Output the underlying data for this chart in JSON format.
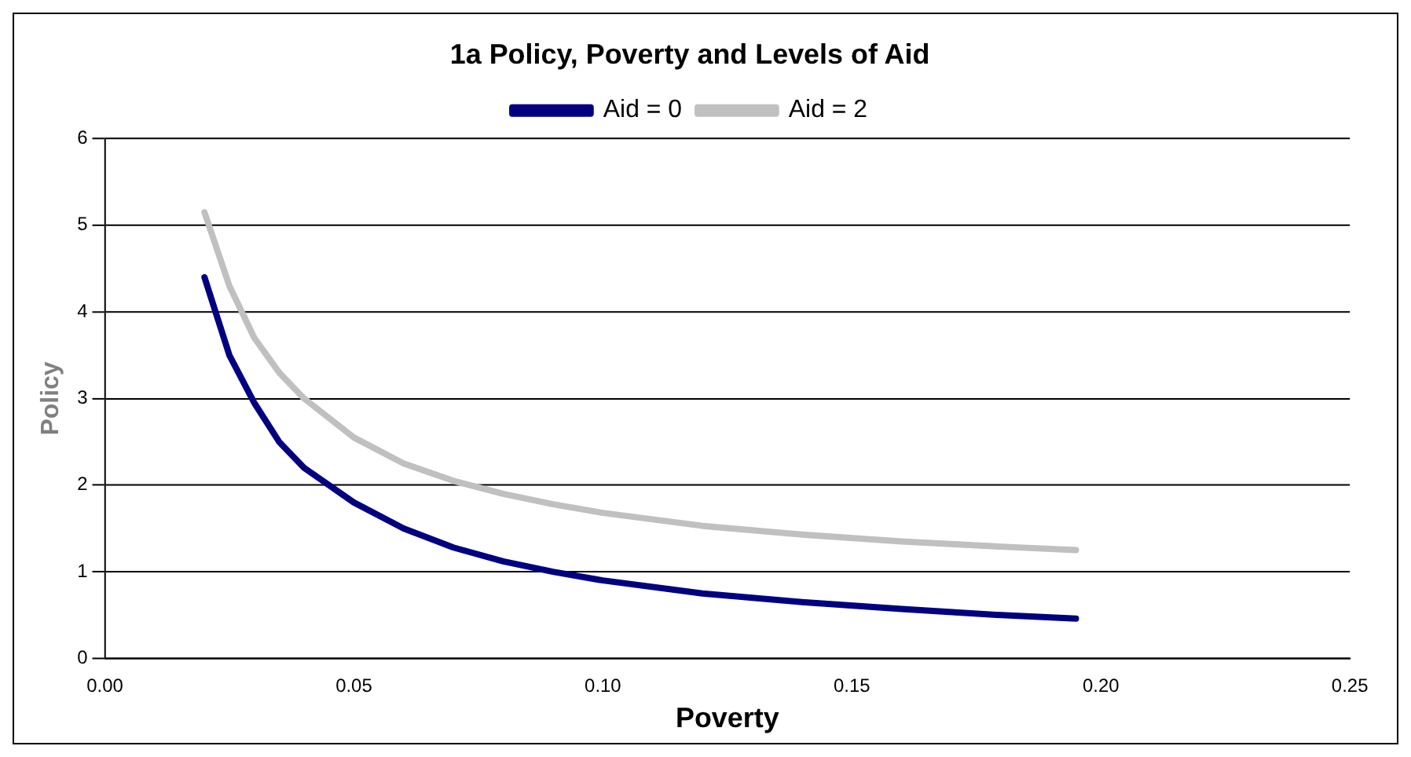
{
  "chart_data": {
    "type": "line",
    "title": "1a Policy, Poverty and Levels of Aid",
    "xlabel": "Poverty",
    "ylabel": "Policy",
    "x": [
      0.02,
      0.025,
      0.03,
      0.035,
      0.04,
      0.05,
      0.06,
      0.07,
      0.08,
      0.09,
      0.1,
      0.12,
      0.14,
      0.16,
      0.18,
      0.195
    ],
    "series": [
      {
        "name": "Aid = 0",
        "color": "#000080",
        "values": [
          4.4,
          3.5,
          2.95,
          2.5,
          2.2,
          1.8,
          1.5,
          1.28,
          1.12,
          1.0,
          0.9,
          0.75,
          0.65,
          0.57,
          0.5,
          0.46
        ]
      },
      {
        "name": "Aid = 2",
        "color": "#c0c0c0",
        "values": [
          5.15,
          4.3,
          3.7,
          3.3,
          3.0,
          2.55,
          2.25,
          2.05,
          1.9,
          1.78,
          1.68,
          1.53,
          1.43,
          1.35,
          1.29,
          1.25
        ]
      }
    ],
    "xlim": [
      0,
      0.25
    ],
    "xticks": [
      {
        "value": 0,
        "label": "0.00"
      },
      {
        "value": 0.05,
        "label": "0.05"
      },
      {
        "value": 0.1,
        "label": "0.10"
      },
      {
        "value": 0.15,
        "label": "0.15"
      },
      {
        "value": 0.2,
        "label": "0.20"
      },
      {
        "value": 0.25,
        "label": "0.25"
      }
    ],
    "ylim": [
      0,
      6
    ],
    "yticks": [
      0,
      1,
      2,
      3,
      4,
      5,
      6
    ],
    "grid": "y",
    "legend": "top",
    "marker": "none",
    "line_style": "solid"
  }
}
